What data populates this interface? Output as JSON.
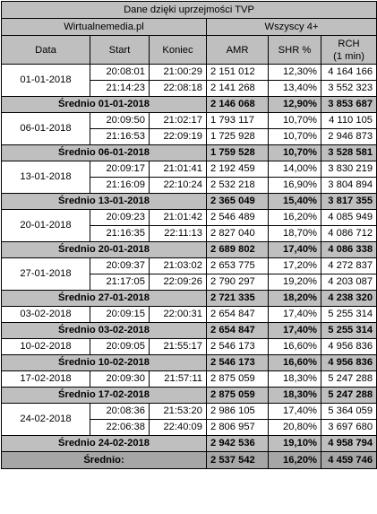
{
  "title": "Dane dzięki uprzejmości TVP",
  "source": "Wirtualnemedia.pl",
  "audience": "Wszyscy 4+",
  "columns": {
    "date": "Data",
    "start": "Start",
    "end": "Koniec",
    "amr": "AMR",
    "shr": "SHR %",
    "rch_line1": "RCH",
    "rch_line2": "(1 min)"
  },
  "groups": [
    {
      "date": "01-01-2018",
      "rows": [
        {
          "start": "20:08:01",
          "end": "21:00:29",
          "amr": "2 151 012",
          "shr": "12,30%",
          "rch": "4 164 166"
        },
        {
          "start": "21:14:23",
          "end": "22:08:18",
          "amr": "2 141 268",
          "shr": "13,40%",
          "rch": "3 552 323"
        }
      ],
      "avg": {
        "label": "Średnio 01-01-2018",
        "amr": "2 146 068",
        "shr": "12,90%",
        "rch": "3 853 687"
      }
    },
    {
      "date": "06-01-2018",
      "rows": [
        {
          "start": "20:09:50",
          "end": "21:02:17",
          "amr": "1 793 117",
          "shr": "10,70%",
          "rch": "4 110 105"
        },
        {
          "start": "21:16:53",
          "end": "22:09:19",
          "amr": "1 725 928",
          "shr": "10,70%",
          "rch": "2 946 873"
        }
      ],
      "avg": {
        "label": "Średnio 06-01-2018",
        "amr": "1 759 528",
        "shr": "10,70%",
        "rch": "3 528 581"
      }
    },
    {
      "date": "13-01-2018",
      "rows": [
        {
          "start": "20:09:17",
          "end": "21:01:41",
          "amr": "2 192 459",
          "shr": "14,00%",
          "rch": "3 830 219"
        },
        {
          "start": "21:16:09",
          "end": "22:10:24",
          "amr": "2 532 218",
          "shr": "16,90%",
          "rch": "3 804 894"
        }
      ],
      "avg": {
        "label": "Średnio 13-01-2018",
        "amr": "2 365 049",
        "shr": "15,40%",
        "rch": "3 817 355"
      }
    },
    {
      "date": "20-01-2018",
      "rows": [
        {
          "start": "20:09:23",
          "end": "21:01:42",
          "amr": "2 546 489",
          "shr": "16,20%",
          "rch": "4 085 949"
        },
        {
          "start": "21:16:35",
          "end": "22:11:13",
          "amr": "2 827 040",
          "shr": "18,70%",
          "rch": "4 086 712"
        }
      ],
      "avg": {
        "label": "Średnio 20-01-2018",
        "amr": "2 689 802",
        "shr": "17,40%",
        "rch": "4 086 338"
      }
    },
    {
      "date": "27-01-2018",
      "rows": [
        {
          "start": "20:09:37",
          "end": "21:03:02",
          "amr": "2 653 775",
          "shr": "17,20%",
          "rch": "4 272 837"
        },
        {
          "start": "21:17:05",
          "end": "22:09:26",
          "amr": "2 790 297",
          "shr": "19,20%",
          "rch": "4 203 087"
        }
      ],
      "avg": {
        "label": "Średnio 27-01-2018",
        "amr": "2 721 335",
        "shr": "18,20%",
        "rch": "4 238 320"
      }
    },
    {
      "date": "03-02-2018",
      "rows": [
        {
          "start": "20:09:15",
          "end": "22:00:31",
          "amr": "2 654 847",
          "shr": "17,40%",
          "rch": "5 255 314"
        }
      ],
      "avg": {
        "label": "Średnio 03-02-2018",
        "amr": "2 654 847",
        "shr": "17,40%",
        "rch": "5 255 314"
      }
    },
    {
      "date": "10-02-2018",
      "rows": [
        {
          "start": "20:09:05",
          "end": "21:55:17",
          "amr": "2 546 173",
          "shr": "16,60%",
          "rch": "4 956 836"
        }
      ],
      "avg": {
        "label": "Średnio 10-02-2018",
        "amr": "2 546 173",
        "shr": "16,60%",
        "rch": "4 956 836"
      }
    },
    {
      "date": "17-02-2018",
      "rows": [
        {
          "start": "20:09:30",
          "end": "21:57:11",
          "amr": "2 875 059",
          "shr": "18,30%",
          "rch": "5 247 288"
        }
      ],
      "avg": {
        "label": "Średnio 17-02-2018",
        "amr": "2 875 059",
        "shr": "18,30%",
        "rch": "5 247 288"
      }
    },
    {
      "date": "24-02-2018",
      "rows": [
        {
          "start": "20:08:36",
          "end": "21:53:20",
          "amr": "2 986 105",
          "shr": "17,40%",
          "rch": "5 364 059"
        },
        {
          "start": "22:06:38",
          "end": "22:40:09",
          "amr": "2 806 957",
          "shr": "20,80%",
          "rch": "3 697 680"
        }
      ],
      "avg": {
        "label": "Średnio 24-02-2018",
        "amr": "2 942 536",
        "shr": "19,10%",
        "rch": "4 958 794"
      }
    }
  ],
  "total": {
    "label": "Średnio:",
    "amr": "2 537 542",
    "shr": "16,20%",
    "rch": "4 459 746"
  }
}
